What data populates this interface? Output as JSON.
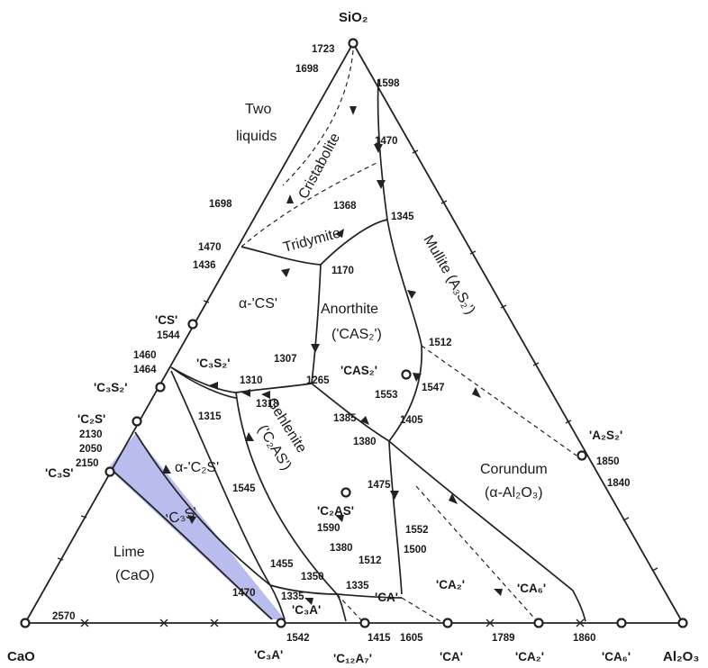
{
  "vertices": {
    "top": "SiO₂",
    "left": "CaO",
    "right": "Al₂O₃"
  },
  "regions": {
    "two_liquids_1": "Two",
    "two_liquids_2": "liquids",
    "cristobalite": "Cristabolite",
    "tridymite": "Tridymite",
    "alpha_cs": "α-'CS'",
    "anorthite": "Anorthite",
    "anorthite_formula": "('CAS₂')",
    "mullite": "Mullite (A₃S₂')",
    "gehlenite": "Gehlenite",
    "gehlenite_formula": "('C₂AS')",
    "alpha_c2s": "α-'C₂S'",
    "c3s": "'C₃S'",
    "lime": "Lime",
    "lime_formula": "(CaO)",
    "corundum": "Corundum",
    "corundum_formula": "(α-Al₂O₃)"
  },
  "compounds": {
    "cs": "'CS'",
    "c3s2": "'C₃S₂'",
    "c2s": "'C₂S'",
    "c3s": "'C₃S'",
    "c3s2_inner": "'C₃S₂'",
    "cas2": "'CAS₂'",
    "c2as": "'C₂AS'",
    "a2s2": "'A₂S₂'",
    "ca2_inner": "'CA₂'",
    "ca6_inner": "'CA₆'",
    "ca_inner": "'CA'",
    "c3a_inner": "'C₃A'",
    "c3a_base": "'C₃A'",
    "c12a7_base": "'C₁₂A₇'",
    "ca_base": "'CA'",
    "ca2_base": "'CA₂'",
    "ca6_base": "'CA₆'"
  },
  "temperatures": {
    "t1723": "1723",
    "t1698a": "1698",
    "t1598": "1598",
    "t1470a": "1470",
    "t1698b": "1698",
    "t1368": "1368",
    "t1345": "1345",
    "t1470b": "1470",
    "t1436": "1436",
    "t1170": "1170",
    "t1544": "1544",
    "t1460": "1460",
    "t1464": "1464",
    "t1307": "1307",
    "t1310": "1310",
    "t1265": "1265",
    "t1512a": "1512",
    "t1553": "1553",
    "t1547": "1547",
    "t1318": "1318",
    "t1315": "1315",
    "t2130": "2130",
    "t2050": "2050",
    "t2150": "2150",
    "t1385": "1385",
    "t1405": "1405",
    "t1380a": "1380",
    "t1850": "1850",
    "t1840": "1840",
    "t1545": "1545",
    "t1475": "1475",
    "t1590": "1590",
    "t1552": "1552",
    "t1380b": "1380",
    "t1512b": "1512",
    "t1500": "1500",
    "t1455": "1455",
    "t1350": "1350",
    "t1335a": "1335",
    "t1470c": "1470",
    "t1335b": "1335",
    "t2570": "2570",
    "t1542": "1542",
    "t1415": "1415",
    "t1605": "1605",
    "t1789": "1789",
    "t1860": "1860"
  },
  "colors": {
    "c3s_field": "#8f93e3",
    "lines": "#222222"
  }
}
